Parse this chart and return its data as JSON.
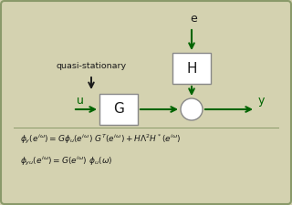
{
  "bg_color": "#d4d2b0",
  "border_color": "#8a9a6a",
  "arrow_color": "#006400",
  "text_color": "#1a1a1a",
  "box_color": "#ffffff",
  "box_edge_color": "#888888",
  "label_G": "G",
  "label_H": "H",
  "label_u": "u",
  "label_y": "y",
  "label_e": "e",
  "label_qs": "quasi-stationary",
  "eq1": "$\\phi_y(e^{i\\omega}) = G\\phi_u(e^{i\\omega})\\ G^T(e^{i\\omega}) + H\\Lambda^2H^*(e^{i\\omega})$",
  "eq2": "$\\phi_{yu}(e^{i\\omega}) = G(e^{i\\omega})\\ \\phi_u(\\omega)$",
  "figw": 3.2,
  "figh": 2.25,
  "dpi": 100
}
